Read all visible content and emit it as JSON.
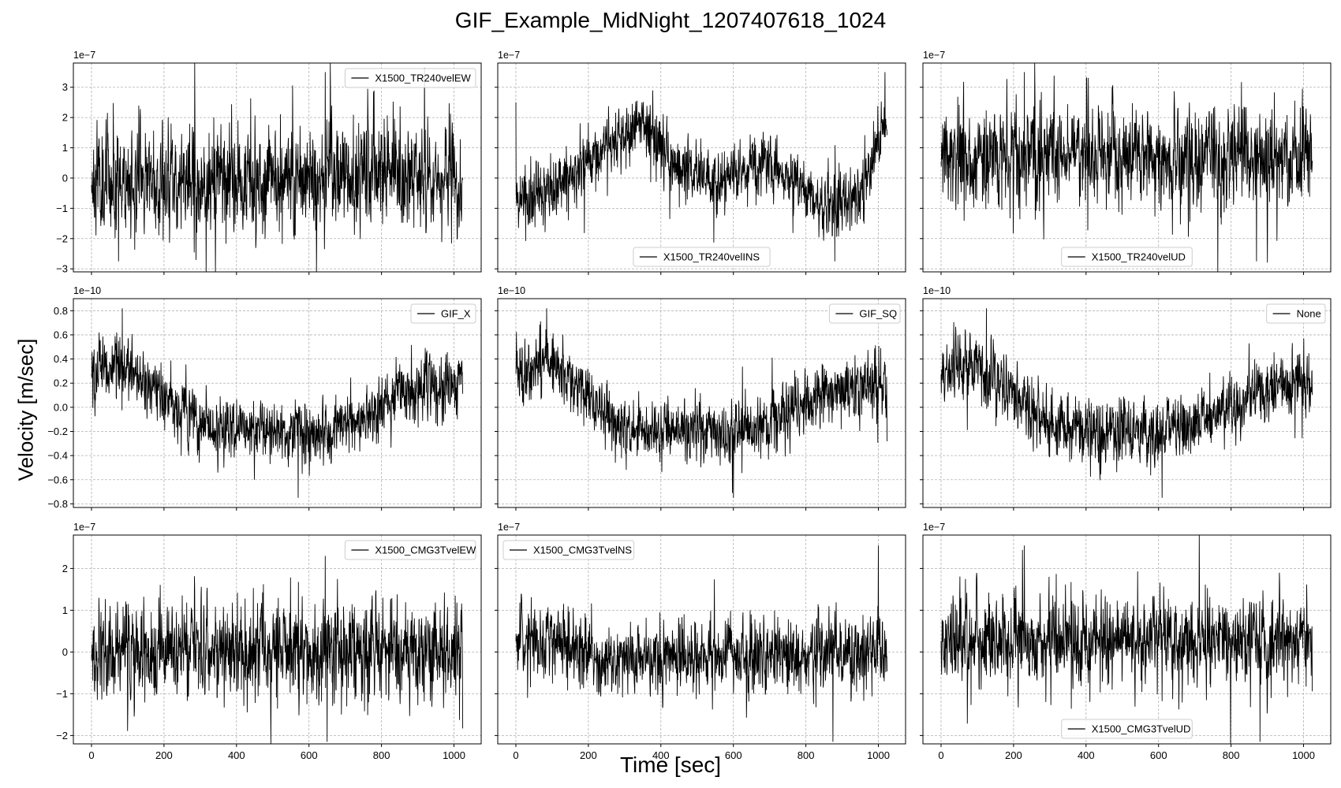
{
  "figure": {
    "title": "GIF_Example_MidNight_1207407618_1024",
    "ylabel": "Velocity [m/sec]",
    "xlabel": "Time [sec]",
    "line_color": "#000000",
    "grid_color": "#b0b0b0"
  },
  "chart_data": [
    {
      "type": "line",
      "row": 0,
      "col": 0,
      "legend": "X1500_TR240velEW",
      "legend_loc": "upper right",
      "offset_text": "1e−7",
      "scale": 1e-07,
      "xlim": [
        -50,
        1075
      ],
      "ylim": [
        -3.1,
        3.8
      ],
      "yticks": [
        -3,
        -2,
        -1,
        0,
        1,
        2,
        3
      ],
      "ytick_labels": [
        "−3",
        "−2",
        "−1",
        "0",
        "1",
        "2",
        "3"
      ],
      "xticks": [
        0,
        200,
        400,
        600,
        800,
        1000
      ],
      "xtick_labels": [],
      "trend_x": [
        0,
        1024
      ],
      "trend_y": [
        0,
        0
      ],
      "noise": 0.8,
      "spike": 2.9,
      "seed": 11,
      "peaks": [
        [
          645,
          3.5
        ],
        [
          75,
          -2.75
        ]
      ]
    },
    {
      "type": "line",
      "row": 0,
      "col": 1,
      "legend": "X1500_TR240velINS",
      "legend_loc": "lower center",
      "offset_text": "1e−7",
      "scale": 1e-07,
      "xlim": [
        -50,
        1075
      ],
      "ylim": [
        -3.1,
        3.8
      ],
      "yticks": [
        -3,
        -2,
        -1,
        0,
        1,
        2,
        3
      ],
      "ytick_labels": [],
      "xticks": [
        0,
        200,
        400,
        600,
        800,
        1000
      ],
      "xtick_labels": [],
      "trend_x": [
        0,
        100,
        200,
        350,
        450,
        550,
        700,
        850,
        950,
        1024
      ],
      "trend_y": [
        -1.0,
        -0.4,
        0.5,
        2.0,
        0.3,
        -0.1,
        0.5,
        -1.0,
        -0.6,
        2.0
      ],
      "noise": 0.45,
      "spike": 1.4,
      "seed": 22,
      "peaks": [
        [
          1018,
          3.5
        ],
        [
          880,
          -2.75
        ],
        [
          0,
          2.5
        ]
      ]
    },
    {
      "type": "line",
      "row": 0,
      "col": 2,
      "legend": "X1500_TR240velUD",
      "legend_loc": "lower center",
      "offset_text": "1e−7",
      "scale": 1e-07,
      "xlim": [
        -50,
        1075
      ],
      "ylim": [
        -3.1,
        3.8
      ],
      "yticks": [
        -3,
        -2,
        -1,
        0,
        1,
        2,
        3
      ],
      "ytick_labels": [],
      "xticks": [
        0,
        200,
        400,
        600,
        800,
        1000
      ],
      "xtick_labels": [],
      "trend_x": [
        0,
        1024
      ],
      "trend_y": [
        0.7,
        0.7
      ],
      "noise": 0.75,
      "spike": 2.5,
      "seed": 33,
      "peaks": [
        [
          230,
          3.5
        ],
        [
          870,
          -2.75
        ]
      ]
    },
    {
      "type": "line",
      "row": 1,
      "col": 0,
      "legend": "GIF_X",
      "legend_loc": "upper right",
      "offset_text": "1e−10",
      "scale": 1e-10,
      "xlim": [
        -50,
        1075
      ],
      "ylim": [
        -0.83,
        0.9
      ],
      "yticks": [
        -0.8,
        -0.6,
        -0.4,
        -0.2,
        0,
        0.2,
        0.4,
        0.6,
        0.8
      ],
      "ytick_labels": [
        "−0.8",
        "−0.6",
        "−0.4",
        "−0.2",
        "0.0",
        "0.2",
        "0.4",
        "0.6",
        "0.8"
      ],
      "xticks": [
        0,
        200,
        400,
        600,
        800,
        1000
      ],
      "xtick_labels": [],
      "trend_x": [
        0,
        100,
        200,
        300,
        450,
        600,
        750,
        850,
        1024
      ],
      "trend_y": [
        0.3,
        0.35,
        0.1,
        -0.15,
        -0.2,
        -0.22,
        -0.1,
        0.1,
        0.22
      ],
      "noise": 0.12,
      "spike": 0.3,
      "seed": 44,
      "peaks": [
        [
          85,
          0.82
        ],
        [
          570,
          -0.75
        ]
      ]
    },
    {
      "type": "line",
      "row": 1,
      "col": 1,
      "legend": "GIF_SQ",
      "legend_loc": "upper right",
      "offset_text": "1e−10",
      "scale": 1e-10,
      "xlim": [
        -50,
        1075
      ],
      "ylim": [
        -0.83,
        0.9
      ],
      "yticks": [
        -0.8,
        -0.6,
        -0.4,
        -0.2,
        0,
        0.2,
        0.4,
        0.6,
        0.8
      ],
      "ytick_labels": [],
      "xticks": [
        0,
        200,
        400,
        600,
        800,
        1000
      ],
      "xtick_labels": [],
      "trend_x": [
        0,
        100,
        200,
        300,
        450,
        600,
        750,
        850,
        1024
      ],
      "trend_y": [
        0.3,
        0.35,
        0.1,
        -0.15,
        -0.2,
        -0.22,
        -0.1,
        0.1,
        0.22
      ],
      "noise": 0.12,
      "spike": 0.3,
      "seed": 55,
      "peaks": [
        [
          85,
          0.82
        ],
        [
          600,
          -0.75
        ]
      ]
    },
    {
      "type": "line",
      "row": 1,
      "col": 2,
      "legend": "None",
      "legend_loc": "upper right",
      "offset_text": "1e−10",
      "scale": 1e-10,
      "xlim": [
        -50,
        1075
      ],
      "ylim": [
        -0.83,
        0.9
      ],
      "yticks": [
        -0.8,
        -0.6,
        -0.4,
        -0.2,
        0,
        0.2,
        0.4,
        0.6,
        0.8
      ],
      "ytick_labels": [],
      "xticks": [
        0,
        200,
        400,
        600,
        800,
        1000
      ],
      "xtick_labels": [],
      "trend_x": [
        0,
        100,
        200,
        300,
        450,
        600,
        750,
        850,
        1024
      ],
      "trend_y": [
        0.3,
        0.35,
        0.1,
        -0.15,
        -0.2,
        -0.22,
        -0.1,
        0.1,
        0.22
      ],
      "noise": 0.12,
      "spike": 0.3,
      "seed": 66,
      "peaks": [
        [
          125,
          0.82
        ],
        [
          610,
          -0.75
        ]
      ]
    },
    {
      "type": "line",
      "row": 2,
      "col": 0,
      "legend": "X1500_CMG3TvelEW",
      "legend_loc": "upper right",
      "offset_text": "1e−7",
      "scale": 1e-07,
      "xlim": [
        -50,
        1075
      ],
      "ylim": [
        -2.2,
        2.8
      ],
      "yticks": [
        -2,
        -1,
        0,
        1,
        2
      ],
      "ytick_labels": [
        "−2",
        "−1",
        "0",
        "1",
        "2"
      ],
      "xticks": [
        0,
        200,
        400,
        600,
        800,
        1000
      ],
      "xtick_labels": [
        "0",
        "200",
        "400",
        "600",
        "800",
        "1000"
      ],
      "trend_x": [
        0,
        1024
      ],
      "trend_y": [
        0,
        0
      ],
      "noise": 0.55,
      "spike": 1.8,
      "seed": 77,
      "peaks": [
        [
          645,
          2.3
        ],
        [
          650,
          -2.15
        ]
      ]
    },
    {
      "type": "line",
      "row": 2,
      "col": 1,
      "legend": "X1500_CMG3TvelNS",
      "legend_loc": "upper left",
      "offset_text": "1e−7",
      "scale": 1e-07,
      "xlim": [
        -50,
        1075
      ],
      "ylim": [
        -2.2,
        2.8
      ],
      "yticks": [
        -2,
        -1,
        0,
        1,
        2
      ],
      "ytick_labels": [],
      "xticks": [
        0,
        200,
        400,
        600,
        800,
        1000
      ],
      "xtick_labels": [
        "0",
        "200",
        "400",
        "600",
        "800",
        "1000"
      ],
      "trend_x": [
        0,
        150,
        200,
        850,
        1024
      ],
      "trend_y": [
        0.3,
        0.2,
        -0.2,
        0.0,
        0.0
      ],
      "noise": 0.4,
      "spike": 1.2,
      "seed": 88,
      "peaks": [
        [
          1000,
          2.55
        ],
        [
          875,
          -2.15
        ]
      ]
    },
    {
      "type": "line",
      "row": 2,
      "col": 2,
      "legend": "X1500_CMG3TvelUD",
      "legend_loc": "lower center",
      "offset_text": "1e−7",
      "scale": 1e-07,
      "xlim": [
        -50,
        1075
      ],
      "ylim": [
        -2.2,
        2.8
      ],
      "yticks": [
        -2,
        -1,
        0,
        1,
        2
      ],
      "ytick_labels": [],
      "xticks": [
        0,
        200,
        400,
        600,
        800,
        1000
      ],
      "xtick_labels": [
        "0",
        "200",
        "400",
        "600",
        "800",
        "1000"
      ],
      "trend_x": [
        0,
        1024
      ],
      "trend_y": [
        0.3,
        0.3
      ],
      "noise": 0.45,
      "spike": 1.5,
      "seed": 99,
      "peaks": [
        [
          230,
          2.55
        ],
        [
          880,
          -2.15
        ]
      ]
    }
  ]
}
